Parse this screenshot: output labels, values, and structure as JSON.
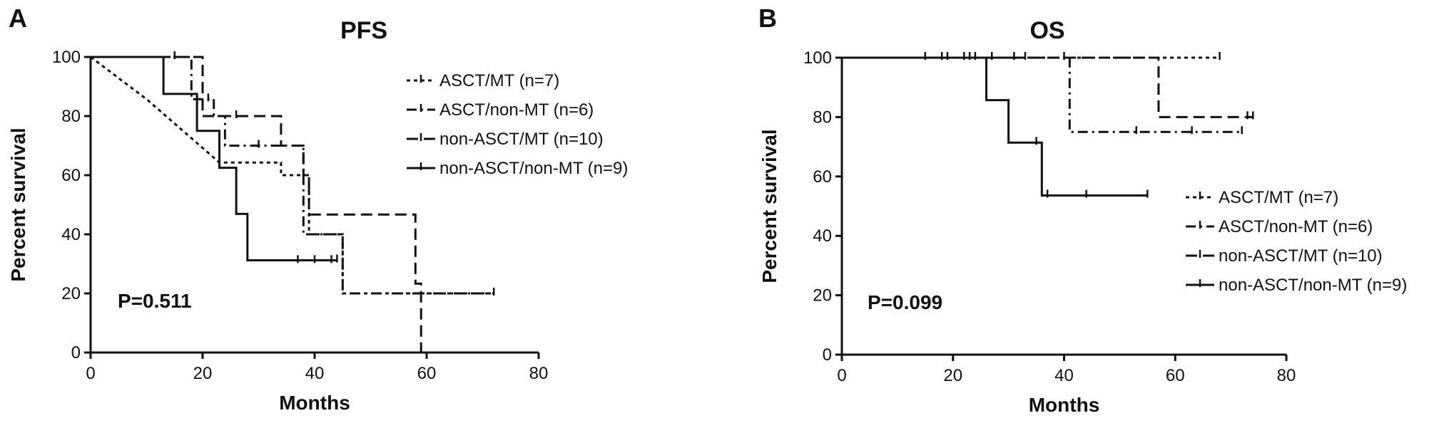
{
  "chart_data": [
    {
      "type": "line",
      "panel_label": "A",
      "title": "PFS",
      "xlabel": "Months",
      "ylabel": "Percent survival",
      "xlim": [
        0,
        80
      ],
      "ylim": [
        0,
        100
      ],
      "xticks": [
        "0",
        "20",
        "40",
        "60",
        "80"
      ],
      "yticks": [
        "0",
        "20",
        "40",
        "60",
        "80",
        "100"
      ],
      "legend_position": "top-right",
      "annotation": "P=0.511",
      "series": [
        {
          "name": "ASCT/MT (n=7)",
          "style": "dotted",
          "steps": [
            [
              0,
              100
            ],
            [
              10,
              85.7
            ],
            [
              23,
              64.3
            ],
            [
              34,
              64.3
            ],
            [
              34,
              60
            ],
            [
              39,
              60
            ],
            [
              39,
              40
            ],
            [
              40,
              40
            ],
            [
              45,
              40
            ],
            [
              45,
              20
            ],
            [
              72,
              20
            ]
          ],
          "censored": []
        },
        {
          "name": "ASCT/non-MT (n=6)",
          "style": "dash-dot",
          "steps": [
            [
              0,
              100
            ],
            [
              18,
              100
            ],
            [
              18,
              85.7
            ],
            [
              22,
              85.7
            ],
            [
              22,
              80
            ],
            [
              24,
              80
            ],
            [
              24,
              70
            ],
            [
              38,
              70
            ],
            [
              38,
              40
            ],
            [
              45,
              40
            ],
            [
              45,
              20
            ],
            [
              72,
              20
            ]
          ],
          "censored": [
            [
              21,
              85.7
            ],
            [
              72,
              20
            ]
          ]
        },
        {
          "name": "non-ASCT/MT (n=10)",
          "style": "dashed",
          "steps": [
            [
              0,
              100
            ],
            [
              20,
              100
            ],
            [
              20,
              80
            ],
            [
              34,
              80
            ],
            [
              34,
              70
            ],
            [
              38,
              70
            ],
            [
              38,
              60
            ],
            [
              39,
              60
            ],
            [
              39,
              46.7
            ],
            [
              58,
              46.7
            ],
            [
              58,
              23.3
            ],
            [
              59,
              23.3
            ],
            [
              59,
              0
            ]
          ],
          "censored": [
            [
              26,
              80
            ],
            [
              30,
              70
            ],
            [
              37,
              31
            ],
            [
              40,
              31
            ],
            [
              43,
              31
            ]
          ]
        },
        {
          "name": "non-ASCT/non-MT (n=9)",
          "style": "solid",
          "steps": [
            [
              0,
              100
            ],
            [
              13,
              100
            ],
            [
              13,
              87.5
            ],
            [
              19,
              87.5
            ],
            [
              19,
              75
            ],
            [
              23,
              75
            ],
            [
              23,
              62.5
            ],
            [
              26,
              62.5
            ],
            [
              26,
              46.9
            ],
            [
              28,
              46.9
            ],
            [
              28,
              31.2
            ],
            [
              44,
              31.2
            ]
          ],
          "censored": [
            [
              15,
              100
            ],
            [
              44,
              31.2
            ]
          ]
        }
      ]
    },
    {
      "type": "line",
      "panel_label": "B",
      "title": "OS",
      "xlabel": "Months",
      "ylabel": "Percent survival",
      "xlim": [
        0,
        80
      ],
      "ylim": [
        0,
        100
      ],
      "xticks": [
        "0",
        "20",
        "40",
        "60",
        "80"
      ],
      "yticks": [
        "0",
        "20",
        "40",
        "60",
        "80",
        "100"
      ],
      "legend_position": "bottom-right",
      "annotation": "P=0.099",
      "series": [
        {
          "name": "ASCT/MT (n=7)",
          "style": "dotted",
          "steps": [
            [
              0,
              100
            ],
            [
              68,
              100
            ]
          ],
          "censored": [
            [
              15,
              100
            ],
            [
              18,
              100
            ],
            [
              19,
              100
            ],
            [
              22,
              100
            ],
            [
              23,
              100
            ],
            [
              24,
              100
            ],
            [
              27,
              100
            ],
            [
              31,
              100
            ],
            [
              33,
              100
            ],
            [
              68,
              100
            ]
          ]
        },
        {
          "name": "ASCT/non-MT (n=6)",
          "style": "dash-dot",
          "steps": [
            [
              0,
              100
            ],
            [
              41,
              100
            ],
            [
              41,
              75
            ],
            [
              72,
              75
            ]
          ],
          "censored": [
            [
              53,
              75
            ],
            [
              63,
              75
            ],
            [
              72,
              75
            ]
          ]
        },
        {
          "name": "non-ASCT/MT (n=10)",
          "style": "dashed",
          "steps": [
            [
              0,
              100
            ],
            [
              57,
              100
            ],
            [
              57,
              80
            ],
            [
              74,
              80
            ]
          ],
          "censored": [
            [
              40,
              100
            ],
            [
              73,
              80
            ],
            [
              74,
              80
            ]
          ]
        },
        {
          "name": "non-ASCT/non-MT (n=9)",
          "style": "solid",
          "steps": [
            [
              0,
              100
            ],
            [
              26,
              100
            ],
            [
              26,
              85.7
            ],
            [
              30,
              85.7
            ],
            [
              30,
              71.4
            ],
            [
              36,
              71.4
            ],
            [
              36,
              53.6
            ],
            [
              55,
              53.6
            ]
          ],
          "censored": [
            [
              35,
              71.4
            ],
            [
              37,
              53.6
            ],
            [
              44,
              53.6
            ],
            [
              55,
              53.6
            ]
          ]
        }
      ]
    }
  ]
}
